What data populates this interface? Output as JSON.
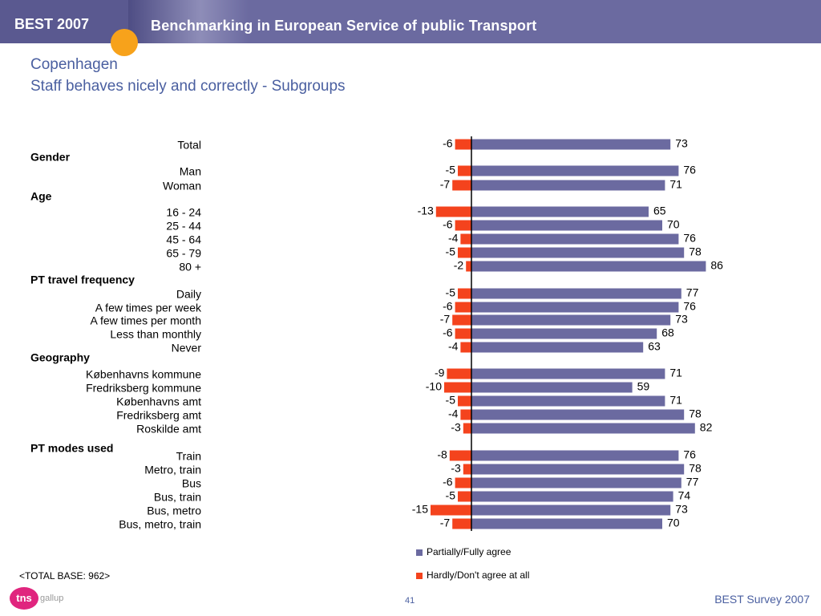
{
  "header": {
    "short_title": "BEST 2007",
    "full_title": "Benchmarking in European Service of public Transport"
  },
  "title": {
    "city": "Copenhagen",
    "subtitle": "Staff behaves nicely and correctly - Subgroups"
  },
  "colors": {
    "agree": "#6b6aa0",
    "disagree": "#f4431d",
    "heading_text": "#4a5fa0"
  },
  "chart_data": {
    "type": "bar",
    "orientation": "horizontal diverging",
    "legend": [
      "Partially/Fully agree",
      "Hardly/Don't agree at all"
    ],
    "legend_placement": "bottom",
    "rows": [
      {
        "kind": "item",
        "label": "Total",
        "disagree": -6,
        "agree": 73
      },
      {
        "kind": "group",
        "label": "Gender"
      },
      {
        "kind": "item",
        "label": "Man",
        "disagree": -5,
        "agree": 76
      },
      {
        "kind": "item",
        "label": "Woman",
        "disagree": -7,
        "agree": 71
      },
      {
        "kind": "group",
        "label": "Age"
      },
      {
        "kind": "item",
        "label": "16 - 24",
        "disagree": -13,
        "agree": 65
      },
      {
        "kind": "item",
        "label": "25 - 44",
        "disagree": -6,
        "agree": 70
      },
      {
        "kind": "item",
        "label": "45 - 64",
        "disagree": -4,
        "agree": 76
      },
      {
        "kind": "item",
        "label": "65 - 79",
        "disagree": -5,
        "agree": 78
      },
      {
        "kind": "item",
        "label": "80 +",
        "disagree": -2,
        "agree": 86
      },
      {
        "kind": "group",
        "label": "PT travel frequency"
      },
      {
        "kind": "item",
        "label": "Daily",
        "disagree": -5,
        "agree": 77
      },
      {
        "kind": "item",
        "label": "A few times per week",
        "disagree": -6,
        "agree": 76
      },
      {
        "kind": "item",
        "label": "A few times per month",
        "disagree": -7,
        "agree": 73
      },
      {
        "kind": "item",
        "label": "Less than monthly",
        "disagree": -6,
        "agree": 68
      },
      {
        "kind": "item",
        "label": "Never",
        "disagree": -4,
        "agree": 63
      },
      {
        "kind": "group",
        "label": "Geography"
      },
      {
        "kind": "item",
        "label": "Københavns kommune",
        "disagree": -9,
        "agree": 71
      },
      {
        "kind": "item",
        "label": "Fredriksberg kommune",
        "disagree": -10,
        "agree": 59
      },
      {
        "kind": "item",
        "label": "Københavns amt",
        "disagree": -5,
        "agree": 71
      },
      {
        "kind": "item",
        "label": "Fredriksberg amt",
        "disagree": -4,
        "agree": 78
      },
      {
        "kind": "item",
        "label": "Roskilde amt",
        "disagree": -3,
        "agree": 82
      },
      {
        "kind": "group",
        "label": "PT modes used"
      },
      {
        "kind": "item",
        "label": "Train",
        "disagree": -8,
        "agree": 76
      },
      {
        "kind": "item",
        "label": "Metro, train",
        "disagree": -3,
        "agree": 78
      },
      {
        "kind": "item",
        "label": "Bus",
        "disagree": -6,
        "agree": 77
      },
      {
        "kind": "item",
        "label": "Bus, train",
        "disagree": -5,
        "agree": 74
      },
      {
        "kind": "item",
        "label": "Bus, metro",
        "disagree": -15,
        "agree": 73
      },
      {
        "kind": "item",
        "label": "Bus, metro, train",
        "disagree": -7,
        "agree": 70
      }
    ]
  },
  "footer": {
    "base_note": "<TOTAL BASE: 962>",
    "logo_text": "tns",
    "logo_sub": "gallup",
    "page_number": "41",
    "survey": "BEST Survey 2007"
  }
}
